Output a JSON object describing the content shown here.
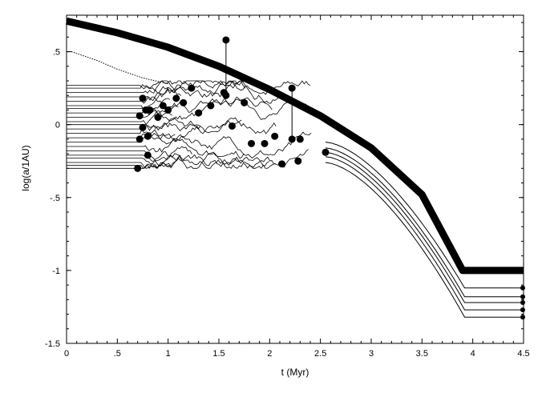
{
  "chart_data": {
    "type": "line",
    "title": "",
    "xlabel": "t (Myr)",
    "ylabel": "log(a/1AU)",
    "xlim": [
      0,
      4.5
    ],
    "ylim": [
      -1.5,
      0.75
    ],
    "x_ticks": [
      0,
      0.5,
      1,
      1.5,
      2,
      2.5,
      3,
      3.5,
      4,
      4.5
    ],
    "x_tick_labels": [
      "0",
      ".5",
      "1",
      "1.5",
      "2",
      "2.5",
      "3",
      "3.5",
      "4",
      "4.5"
    ],
    "y_ticks": [
      0.5,
      0,
      -0.5,
      -1,
      -1.5
    ],
    "y_tick_labels": [
      ".5",
      "0",
      "-.5",
      "-1",
      "-1.5"
    ],
    "grid": false,
    "giant_planet": {
      "x": [
        0,
        0.5,
        1,
        1.5,
        2,
        2.5,
        3,
        3.5,
        3.9,
        4.5
      ],
      "y": [
        0.71,
        0.63,
        0.53,
        0.4,
        0.24,
        0.06,
        -0.16,
        -0.48,
        -1.0,
        -1.0
      ]
    },
    "outer_dotted_track": {
      "x": [
        0,
        0.05,
        0.3,
        0.5,
        0.75,
        1.0
      ],
      "y": [
        0.5,
        0.5,
        0.44,
        0.38,
        0.32,
        0.28
      ]
    },
    "embryo_initial_log_a": [
      0.27,
      0.25,
      0.22,
      0.19,
      0.16,
      0.13,
      0.11,
      0.08,
      0.05,
      0.02,
      0.0,
      -0.03,
      -0.06,
      -0.09,
      -0.12,
      -0.15,
      -0.18,
      -0.21,
      -0.23,
      -0.26,
      -0.28,
      -0.3
    ],
    "survivor_tracks": {
      "start_x": 2.55,
      "end_x": 4.5,
      "decay_start_x": 2.55,
      "decay_end_x": 3.92,
      "start_y": [
        -0.12,
        -0.16,
        -0.19,
        -0.22,
        -0.26
      ],
      "end_y": [
        -1.12,
        -1.18,
        -1.22,
        -1.27,
        -1.32
      ]
    },
    "eccentricity_bars": [
      {
        "t": 1.57,
        "peri": 0.2,
        "apo": 0.58
      },
      {
        "t": 2.22,
        "peri": -0.1,
        "apo": 0.25
      }
    ],
    "merger_events": {
      "t": [
        0.7,
        0.72,
        0.75,
        0.78,
        0.8,
        0.8,
        0.82,
        0.9,
        0.95,
        1.0,
        1.08,
        1.15,
        1.23,
        1.3,
        1.42,
        1.55,
        1.63,
        1.75,
        1.82,
        1.95,
        2.05,
        2.12,
        2.28,
        2.3,
        2.55,
        0.72,
        0.75
      ],
      "log_a": [
        -0.3,
        -0.1,
        0.18,
        0.1,
        -0.08,
        -0.21,
        0.1,
        0.05,
        0.13,
        0.1,
        0.18,
        0.15,
        0.25,
        0.08,
        0.13,
        0.22,
        -0.01,
        0.15,
        -0.13,
        -0.13,
        -0.08,
        -0.27,
        -0.25,
        -0.1,
        -0.19,
        0.06,
        -0.02
      ]
    },
    "end_points": {
      "t": [
        4.5,
        4.5,
        4.5,
        4.5,
        4.5
      ],
      "log_a": [
        -1.12,
        -1.18,
        -1.22,
        -1.27,
        -1.32
      ]
    }
  }
}
